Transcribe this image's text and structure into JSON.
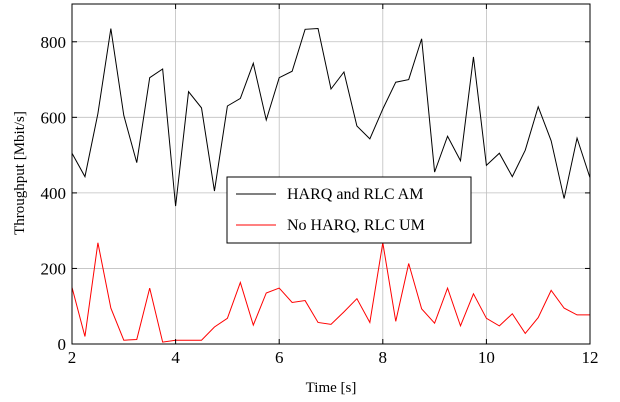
{
  "chart_data": {
    "type": "line",
    "xlabel": "Time [s]",
    "ylabel": "Throughput [Mbit/s]",
    "xlim": [
      2,
      12
    ],
    "ylim": [
      0,
      900
    ],
    "xticks": [
      2,
      4,
      6,
      8,
      10,
      12
    ],
    "yticks": [
      0,
      200,
      400,
      600,
      800
    ],
    "grid": true,
    "legend_position": "center-right",
    "x": [
      2.0,
      2.25,
      2.5,
      2.75,
      3.0,
      3.25,
      3.5,
      3.75,
      4.0,
      4.25,
      4.5,
      4.75,
      5.0,
      5.25,
      5.5,
      5.75,
      6.0,
      6.25,
      6.5,
      6.75,
      7.0,
      7.25,
      7.5,
      7.75,
      8.0,
      8.25,
      8.5,
      8.75,
      9.0,
      9.25,
      9.5,
      9.75,
      10.0,
      10.25,
      10.5,
      10.75,
      11.0,
      11.25,
      11.5,
      11.75,
      12.0
    ],
    "series": [
      {
        "name": "HARQ and RLC AM",
        "color": "#000000",
        "values": [
          505,
          443,
          610,
          835,
          605,
          480,
          705,
          728,
          365,
          668,
          625,
          405,
          630,
          650,
          743,
          593,
          705,
          722,
          833,
          835,
          675,
          720,
          577,
          543,
          622,
          693,
          700,
          808,
          455,
          550,
          485,
          760,
          473,
          505,
          443,
          513,
          628,
          538,
          385,
          545,
          440
        ]
      },
      {
        "name": "No HARQ, RLC UM",
        "color": "#ff0000",
        "values": [
          150,
          20,
          268,
          95,
          10,
          12,
          148,
          5,
          10,
          10,
          10,
          45,
          68,
          163,
          50,
          135,
          148,
          110,
          115,
          57,
          52,
          85,
          120,
          57,
          268,
          60,
          213,
          93,
          55,
          148,
          48,
          133,
          68,
          48,
          80,
          28,
          70,
          142,
          95,
          77,
          77
        ]
      }
    ]
  }
}
